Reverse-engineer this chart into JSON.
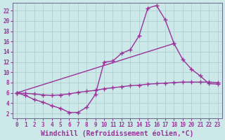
{
  "xlabel": "Windchill (Refroidissement éolien,°C)",
  "background_color": "#cce8e8",
  "grid_color": "#aacccc",
  "line_color": "#993399",
  "xlim": [
    -0.5,
    23.5
  ],
  "ylim": [
    1.0,
    23.5
  ],
  "xticks": [
    0,
    1,
    2,
    3,
    4,
    5,
    6,
    7,
    8,
    9,
    10,
    11,
    12,
    13,
    14,
    15,
    16,
    17,
    18,
    19,
    20,
    21,
    22,
    23
  ],
  "yticks": [
    2,
    4,
    6,
    8,
    10,
    12,
    14,
    16,
    18,
    20,
    22
  ],
  "curve1_x": [
    0,
    1,
    2,
    3,
    4,
    5,
    6,
    7,
    8,
    9,
    10,
    11,
    12,
    13,
    14,
    15,
    16,
    17,
    18
  ],
  "curve1_y": [
    6.0,
    5.5,
    4.7,
    4.2,
    3.5,
    3.0,
    2.2,
    2.2,
    3.2,
    5.7,
    12.0,
    12.2,
    13.7,
    14.4,
    17.1,
    22.5,
    23.0,
    20.2,
    15.6
  ],
  "curve2_x": [
    0,
    18,
    19,
    20,
    21,
    22,
    23
  ],
  "curve2_y": [
    6.0,
    15.6,
    12.5,
    10.6,
    9.3,
    7.8,
    7.7
  ],
  "curve3_x": [
    0,
    1,
    2,
    3,
    4,
    5,
    6,
    7,
    8,
    9,
    10,
    11,
    12,
    13,
    14,
    15,
    16,
    17,
    18,
    19,
    20,
    21,
    22,
    23
  ],
  "curve3_y": [
    6.0,
    5.9,
    5.8,
    5.6,
    5.5,
    5.6,
    5.8,
    6.1,
    6.3,
    6.5,
    6.8,
    7.0,
    7.2,
    7.4,
    7.5,
    7.7,
    7.8,
    7.9,
    8.0,
    8.1,
    8.1,
    8.1,
    8.1,
    8.0
  ],
  "marker": "+",
  "markersize": 4,
  "linewidth": 1.0,
  "xlabel_fontsize": 7,
  "tick_fontsize": 5.5
}
